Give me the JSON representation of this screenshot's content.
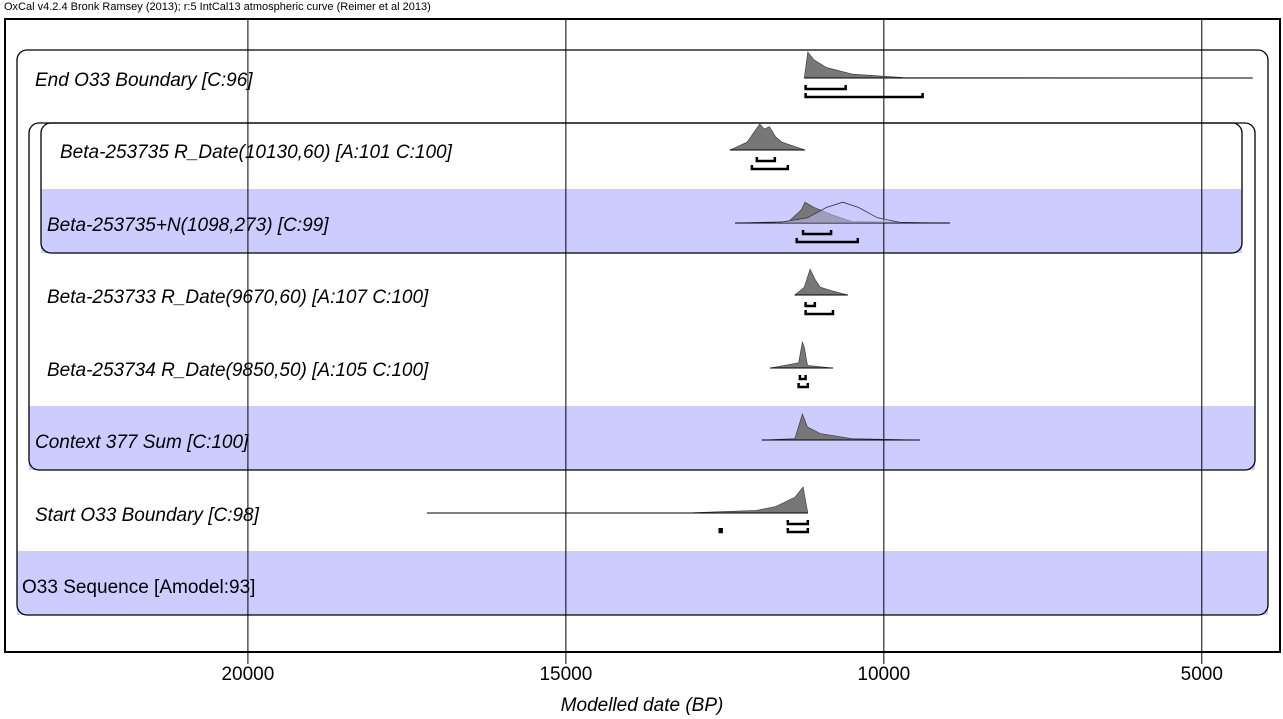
{
  "chart_data": {
    "type": "oxcal",
    "header": "OxCal v4.2.4 Bronk Ramsey (2013); r:5 IntCal13 atmospheric curve (Reimer et al 2013)",
    "xlabel": "Modelled date (BP)",
    "xlim": [
      23820,
      3770
    ],
    "xticks": [
      20000,
      15000,
      10000,
      5000
    ],
    "grid": true,
    "highlight_color": "#ccccff",
    "rows": [
      {
        "label": "End O33 Boundary [C:96]",
        "highlight": false,
        "curves": [
          {
            "x": [
              11250,
              11195,
              11100,
              10900,
              10500,
              9700,
              4198
            ],
            "values": [
              0,
              1,
              0.7,
              0.4,
              0.15,
              0.02,
              0
            ],
            "filled": true
          }
        ],
        "range_68": [
          [
            11230,
            10600
          ]
        ],
        "range_95": [
          [
            11230,
            9390
          ]
        ]
      },
      {
        "label": "Beta-253735 R_Date(10130,60) [A:101 C:100]",
        "highlight": false,
        "curves": [
          {
            "x": [
              12420,
              12150,
              11980,
              11950,
              11880,
              11800,
              11700,
              11600,
              11240
            ],
            "values": [
              0,
              0.3,
              0.9,
              1,
              0.8,
              0.9,
              0.5,
              0.3,
              0
            ],
            "filled": true
          }
        ],
        "range_68": [
          [
            11997,
            11714
          ]
        ],
        "range_95": [
          [
            12075,
            11510
          ]
        ]
      },
      {
        "label": "Beta-253735+N(1098,273) [C:99]",
        "highlight": true,
        "curves": [
          {
            "x": [
              12340,
              11500,
              11300,
              11240,
              11100,
              10800,
              10500,
              8960
            ],
            "values": [
              0,
              0.05,
              0.5,
              0.8,
              0.6,
              0.3,
              0.05,
              0
            ],
            "filled": true
          },
          {
            "x": [
              11700,
              11200,
              10900,
              10645,
              10400,
              10100,
              9700
            ],
            "values": [
              0,
              0.2,
              0.6,
              0.8,
              0.6,
              0.2,
              0
            ],
            "filled": false
          }
        ],
        "range_68": [
          [
            11270,
            10830
          ]
        ],
        "range_95": [
          [
            11370,
            10410
          ]
        ]
      },
      {
        "label": "Beta-253733 R_Date(9670,60) [A:107 C:100]",
        "highlight": false,
        "curves": [
          {
            "x": [
              11400,
              11250,
              11160,
              11080,
              11000,
              10800,
              10565
            ],
            "values": [
              0,
              0.3,
              1,
              0.6,
              0.3,
              0.15,
              0
            ],
            "filled": true
          }
        ],
        "range_68": [
          [
            11230,
            11085
          ]
        ],
        "range_95": [
          [
            11230,
            10800
          ]
        ]
      },
      {
        "label": "Beta-253734 R_Date(9850,50) [A:105 C:100]",
        "highlight": false,
        "curves": [
          {
            "x": [
              11790,
              11340,
              11280,
              11250,
              11200,
              10800
            ],
            "values": [
              0,
              0.2,
              1,
              0.8,
              0.1,
              0
            ],
            "filled": true
          }
        ],
        "range_68": [
          [
            11320,
            11230
          ]
        ],
        "range_95": [
          [
            11340,
            11195
          ]
        ]
      },
      {
        "label": "Context 377 Sum [C:100]",
        "highlight": true,
        "curves": [
          {
            "x": [
              11920,
              11400,
              11280,
              11200,
              11000,
              10500,
              9430
            ],
            "values": [
              0,
              0.05,
              1,
              0.5,
              0.25,
              0.05,
              0
            ],
            "filled": true
          }
        ],
        "range_68": [],
        "range_95": []
      },
      {
        "label": "Start O33 Boundary [C:98]",
        "highlight": false,
        "curves": [
          {
            "x": [
              17185,
              13000,
              12000,
              11700,
              11400,
              11270,
              11195
            ],
            "values": [
              0,
              0.01,
              0.1,
              0.25,
              0.6,
              1,
              0
            ],
            "filled": true
          }
        ],
        "range_68": [
          [
            11510,
            11195
          ]
        ],
        "range_95": [
          [
            12580,
            12550
          ],
          [
            11510,
            11195
          ]
        ]
      },
      {
        "label": "O33 Sequence [Amodel:93]",
        "highlight": true,
        "curves": [],
        "range_68": [],
        "range_95": []
      }
    ]
  }
}
